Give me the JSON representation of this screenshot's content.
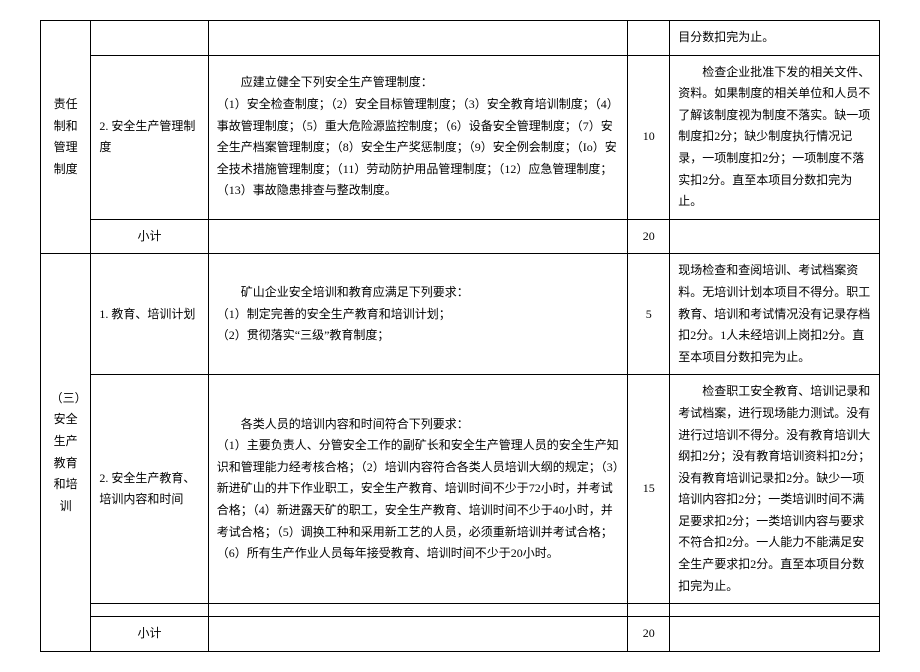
{
  "colors": {
    "border": "#000000",
    "text": "#000000",
    "background": "#ffffff"
  },
  "typography": {
    "font_family": "SimSun",
    "font_size_pt": 9,
    "line_height": 1.8
  },
  "table": {
    "column_widths_pct": [
      6,
      14,
      50,
      5,
      25
    ],
    "sections": [
      {
        "section_label": "责任制和管理制度",
        "rows": [
          {
            "item": "",
            "desc": "",
            "score": "",
            "note": "目分数扣完为止。"
          },
          {
            "item": "2. 安全生产管理制度",
            "desc_lead": "应建立健全下列安全生产管理制度：",
            "desc_body": "（1）安全检查制度；（2）安全目标管理制度；（3）安全教育培训制度；（4）事故管理制度；（5）重大危险源监控制度；（6）设备安全管理制度；（7）安全生产档案管理制度；（8）安全生产奖惩制度；（9）安全例会制度；（Io）安全技术措施管理制度；（11）劳动防护用品管理制度；（12）应急管理制度；（13）事故隐患排查与整改制度。",
            "score": "10",
            "note_lead": "检查企业批准下发的相关文件、资料。如果制度的相关单位和人员不了解该制度视为制度不落实。缺一项制度扣2分；缺少制度执行情况记录，一项制度扣2分；一项制度不落实扣2分。直至本项目分数扣完为止。"
          }
        ],
        "subtotal_label": "小计",
        "subtotal_score": "20"
      },
      {
        "section_label": "（三）安全生产教育和培训",
        "rows": [
          {
            "item": "1. 教育、培训计划",
            "desc_lead": "矿山企业安全培训和教育应满足下列要求：",
            "desc_body": "（1）制定完善的安全生产教育和培训计划；\n（2）贯彻落实“三级”教育制度；",
            "score": "5",
            "note": "现场检查和查阅培训、考试档案资料。无培训计划本项目不得分。职工教育、培训和考试情况没有记录存档扣2分。1人未经培训上岗扣2分。直至本项目分数扣完为止。"
          },
          {
            "item": "2. 安全生产教育、培训内容和时间",
            "desc_lead": "各类人员的培训内容和时间符合下列要求：",
            "desc_body": "（1）主要负责人、分管安全工作的副矿长和安全生产管理人员的安全生产知识和管理能力经考核合格；（2）培训内容符合各类人员培训大纲的规定；（3）新进矿山的井下作业职工，安全生产教育、培训时间不少于72小时，并考试合格；（4）新进露天矿的职工，安全生产教育、培训时间不少于40小时，并考试合格；（5）调换工种和采用新工艺的人员，必须重新培训并考试合格；（6）所有生产作业人员每年接受教育、培训时间不少于20小时。",
            "score": "15",
            "note_lead": "检查职工安全教育、培训记录和考试档案，进行现场能力测试。没有进行过培训不得分。没有教育培训大纲扣2分；没有教育培训资料扣2分；没有教育培训记录扣2分。缺少一项培训内容扣2分；一类培训时间不满足要求扣2分；一类培训内容与要求不符合扣2分。一人能力不能满足安全生产要求扣2分。直至本项目分数扣完为止。"
          }
        ],
        "subtotal_label": "小计",
        "subtotal_score": "20"
      }
    ]
  }
}
